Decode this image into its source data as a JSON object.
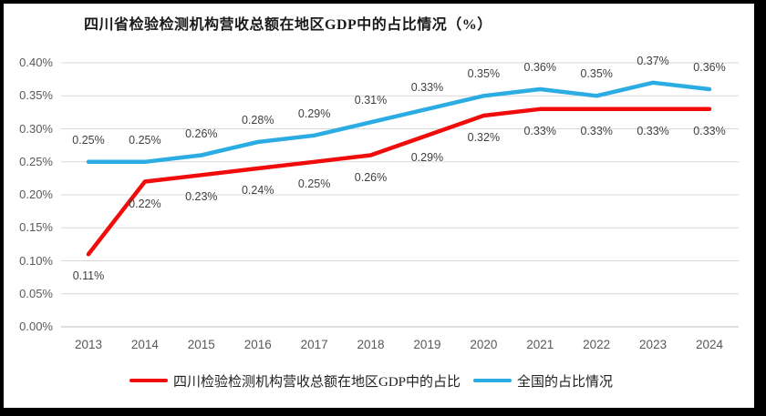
{
  "window": {
    "background": "#ffffff",
    "frame_color": "#000000"
  },
  "chart_data": {
    "type": "line",
    "title": "四川省检验检测机构营收总额在地区GDP中的占比情况（%）",
    "categories": [
      "2013",
      "2014",
      "2015",
      "2016",
      "2017",
      "2018",
      "2019",
      "2020",
      "2021",
      "2022",
      "2023",
      "2024"
    ],
    "series": [
      {
        "name": "四川检验检测机构营收总额在地区GDP中的占比",
        "color": "#F10C0C",
        "values": [
          0.11,
          0.22,
          0.23,
          0.24,
          0.25,
          0.26,
          0.29,
          0.32,
          0.33,
          0.33,
          0.33,
          0.33
        ],
        "labels": [
          "0.11%",
          "0.22%",
          "0.23%",
          "0.24%",
          "0.25%",
          "0.26%",
          "0.29%",
          "0.32%",
          "0.33%",
          "0.33%",
          "0.33%",
          "0.33%"
        ],
        "label_position": "below"
      },
      {
        "name": "全国的占比情况",
        "color": "#2BACE2",
        "values": [
          0.25,
          0.25,
          0.26,
          0.28,
          0.29,
          0.31,
          0.33,
          0.35,
          0.36,
          0.35,
          0.37,
          0.36
        ],
        "labels": [
          "0.25%",
          "0.25%",
          "0.26%",
          "0.28%",
          "0.29%",
          "0.31%",
          "0.33%",
          "0.35%",
          "0.36%",
          "0.35%",
          "0.37%",
          "0.36%"
        ],
        "label_position": "above"
      }
    ],
    "y_axis": {
      "min": 0,
      "max": 0.4,
      "step": 0.05,
      "tick_labels": [
        "0.00%",
        "0.05%",
        "0.10%",
        "0.15%",
        "0.20%",
        "0.25%",
        "0.30%",
        "0.35%",
        "0.40%"
      ]
    },
    "x_axis": {
      "label": ""
    },
    "grid": true,
    "legend_position": "bottom",
    "colors": {
      "gridline": "#D9D9D9",
      "axis_line": "#BFBFBF",
      "tick_text": "#595959",
      "data_label_text": "#3F3F3F",
      "title_text": "#1A1A1A"
    }
  }
}
